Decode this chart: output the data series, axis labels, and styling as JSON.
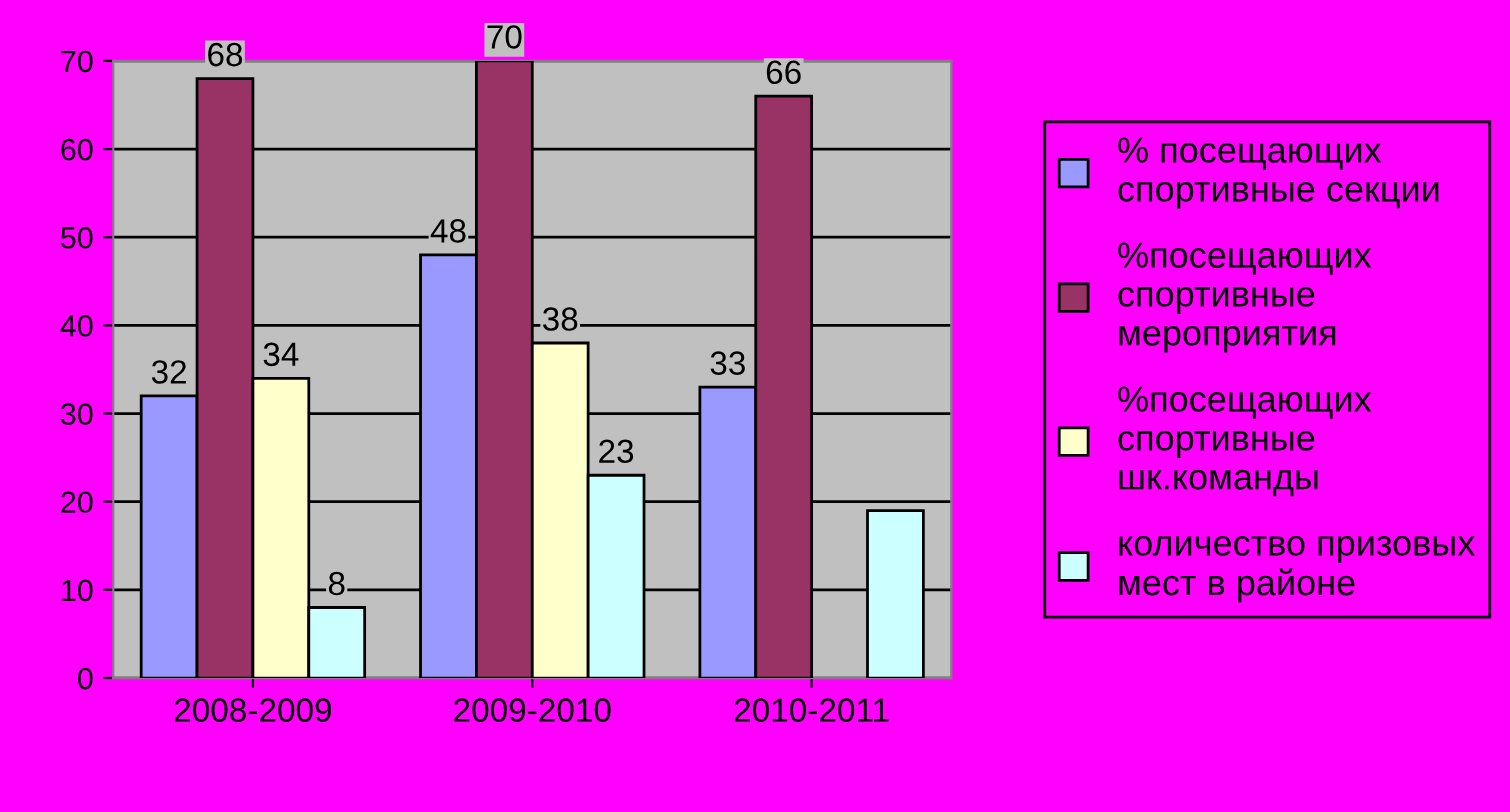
{
  "chart_data": {
    "type": "bar",
    "categories": [
      "2008-2009",
      "2009-2010",
      "2010-2011"
    ],
    "series": [
      {
        "name": "% посещающих спортивные секции",
        "color": "#9999ff",
        "values": [
          32,
          48,
          33
        ],
        "value_labels": [
          "32",
          "48",
          "33"
        ]
      },
      {
        "name": "%посещающих спортивные мероприятия",
        "color": "#993366",
        "values": [
          68,
          70,
          66
        ],
        "value_labels": [
          "68",
          "70",
          "66"
        ]
      },
      {
        "name": "%посещающих спортивные шк.команды",
        "color": "#ffffcc",
        "values": [
          34,
          38,
          null
        ],
        "value_labels": [
          "34",
          "38",
          null
        ]
      },
      {
        "name": "количество призовых мест в районе",
        "color": "#ccffff",
        "values": [
          8,
          23,
          19
        ],
        "value_labels": [
          "8",
          "23",
          null
        ]
      }
    ],
    "ylim": [
      0,
      70
    ],
    "yticks": [
      0,
      10,
      20,
      30,
      40,
      50,
      60,
      70
    ],
    "grid": "y",
    "legend": "right"
  }
}
